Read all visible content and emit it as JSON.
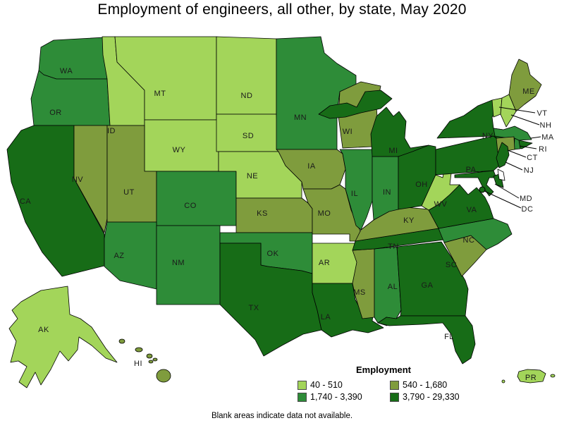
{
  "title": "Employment of engineers, all other, by state, May 2020",
  "footnote": "Blank areas indicate data not available.",
  "legend": {
    "title": "Employment",
    "classes": [
      {
        "label": "40 - 510",
        "color": "#A3D55A"
      },
      {
        "label": "540 - 1,680",
        "color": "#7F9C3D"
      },
      {
        "label": "1,740 - 3,390",
        "color": "#2E8C38"
      },
      {
        "label": "3,790 - 29,330",
        "color": "#176C17"
      }
    ]
  },
  "map": {
    "border_color": "#000000",
    "no_data_fill": "#FFFFFF",
    "label_color": "#1a1a1a",
    "states": [
      {
        "code": "AK",
        "class_index": 0
      },
      {
        "code": "HI",
        "class_index": 1
      },
      {
        "code": "PR",
        "class_index": 0
      },
      {
        "code": "WA",
        "class_index": 2
      },
      {
        "code": "OR",
        "class_index": 2
      },
      {
        "code": "CA",
        "class_index": 3
      },
      {
        "code": "ID",
        "class_index": 0
      },
      {
        "code": "MT",
        "class_index": 0
      },
      {
        "code": "WY",
        "class_index": 0
      },
      {
        "code": "NV",
        "class_index": 1
      },
      {
        "code": "UT",
        "class_index": 1
      },
      {
        "code": "CO",
        "class_index": 2
      },
      {
        "code": "AZ",
        "class_index": 2
      },
      {
        "code": "NM",
        "class_index": 2
      },
      {
        "code": "ND",
        "class_index": 0
      },
      {
        "code": "SD",
        "class_index": 0
      },
      {
        "code": "NE",
        "class_index": 0
      },
      {
        "code": "KS",
        "class_index": 1
      },
      {
        "code": "OK",
        "class_index": 2
      },
      {
        "code": "TX",
        "class_index": 3
      },
      {
        "code": "MN",
        "class_index": 2
      },
      {
        "code": "IA",
        "class_index": 1
      },
      {
        "code": "MO",
        "class_index": 1
      },
      {
        "code": "AR",
        "class_index": 0
      },
      {
        "code": "LA",
        "class_index": 3
      },
      {
        "code": "WI",
        "class_index": 1
      },
      {
        "code": "IL",
        "class_index": 2
      },
      {
        "code": "MS",
        "class_index": 1
      },
      {
        "code": "AL",
        "class_index": 2
      },
      {
        "code": "TN",
        "class_index": 3
      },
      {
        "code": "KY",
        "class_index": 1
      },
      {
        "code": "IN",
        "class_index": 2
      },
      {
        "code": "MI",
        "class_index": 3
      },
      {
        "code": "OH",
        "class_index": 3
      },
      {
        "code": "GA",
        "class_index": 3
      },
      {
        "code": "FL",
        "class_index": 3
      },
      {
        "code": "SC",
        "class_index": 1
      },
      {
        "code": "NC",
        "class_index": 2
      },
      {
        "code": "VA",
        "class_index": 3
      },
      {
        "code": "WV",
        "class_index": 0
      },
      {
        "code": "PA",
        "class_index": 3
      },
      {
        "code": "NY",
        "class_index": 3
      },
      {
        "code": "ME",
        "class_index": 1
      },
      {
        "code": "VT",
        "class_index": 0
      },
      {
        "code": "NH",
        "class_index": 0
      },
      {
        "code": "MA",
        "class_index": 2
      },
      {
        "code": "RI",
        "class_index": 2
      },
      {
        "code": "CT",
        "class_index": 1
      },
      {
        "code": "NJ",
        "class_index": 3
      },
      {
        "code": "MD",
        "class_index": 3
      },
      {
        "code": "DC",
        "class_index": 3
      }
    ],
    "no_data": [
      "DE"
    ]
  }
}
